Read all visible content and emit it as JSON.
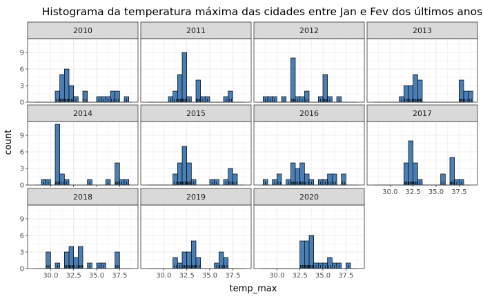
{
  "chart_data": {
    "type": "bar",
    "subtype": "faceted-histogram",
    "title": "Histograma da temperatura máxima das cidades entre Jan e Fev dos últimos anos",
    "xlabel": "temp_max",
    "ylabel": "count",
    "xlim": [
      27.5,
      39.5
    ],
    "ylim": [
      0,
      11.5
    ],
    "xticks": [
      30,
      32.5,
      35,
      37.5
    ],
    "xtick_labels": [
      "30.0",
      "32.5",
      "35.0",
      "37.5"
    ],
    "yticks": [
      0,
      3,
      6,
      9
    ],
    "ytick_labels": [
      "0",
      "3",
      "6",
      "9"
    ],
    "bin_width": 0.5,
    "grid": true,
    "rug": true,
    "colors": {
      "bar_fill": "#4a7fb5",
      "bar_stroke": "#000000",
      "strip_bg": "#d9d9d9",
      "panel_border": "#333333",
      "grid": "#ebebeb"
    },
    "facets": [
      {
        "year": "2010",
        "bins": [
          [
            30.5,
            2
          ],
          [
            31.0,
            5
          ],
          [
            31.5,
            6
          ],
          [
            32.0,
            3
          ],
          [
            32.5,
            1
          ],
          [
            33.5,
            2
          ],
          [
            35.0,
            1
          ],
          [
            35.5,
            1
          ],
          [
            36.0,
            1
          ],
          [
            36.5,
            2
          ],
          [
            37.0,
            2
          ],
          [
            38.0,
            1
          ]
        ]
      },
      {
        "year": "2011",
        "bins": [
          [
            30.5,
            1
          ],
          [
            31.0,
            2
          ],
          [
            31.5,
            5
          ],
          [
            32.0,
            9
          ],
          [
            32.5,
            1
          ],
          [
            33.5,
            4
          ],
          [
            34.0,
            1
          ],
          [
            34.5,
            1
          ],
          [
            36.5,
            1
          ],
          [
            37.0,
            2
          ]
        ]
      },
      {
        "year": "2012",
        "bins": [
          [
            28.5,
            1
          ],
          [
            29.0,
            1
          ],
          [
            29.5,
            1
          ],
          [
            30.5,
            1
          ],
          [
            31.5,
            8
          ],
          [
            32.0,
            1
          ],
          [
            32.5,
            1
          ],
          [
            33.0,
            2
          ],
          [
            34.5,
            1
          ],
          [
            35.0,
            5
          ],
          [
            35.5,
            1
          ],
          [
            36.5,
            1
          ]
        ]
      },
      {
        "year": "2013",
        "bins": [
          [
            31.0,
            1
          ],
          [
            31.5,
            3
          ],
          [
            32.0,
            3
          ],
          [
            32.5,
            5
          ],
          [
            33.0,
            4
          ],
          [
            37.5,
            4
          ],
          [
            38.0,
            2
          ],
          [
            38.5,
            2
          ]
        ]
      },
      {
        "year": "2014",
        "bins": [
          [
            29.0,
            1
          ],
          [
            29.5,
            1
          ],
          [
            30.5,
            11
          ],
          [
            31.0,
            2
          ],
          [
            31.5,
            1
          ],
          [
            34.0,
            1
          ],
          [
            36.0,
            1
          ],
          [
            37.0,
            4
          ],
          [
            37.5,
            1
          ],
          [
            38.0,
            1
          ]
        ]
      },
      {
        "year": "2015",
        "bins": [
          [
            31.0,
            2
          ],
          [
            31.5,
            4
          ],
          [
            32.0,
            7
          ],
          [
            32.5,
            4
          ],
          [
            33.0,
            1
          ],
          [
            35.0,
            1
          ],
          [
            35.5,
            1
          ],
          [
            36.5,
            1
          ],
          [
            37.0,
            3
          ],
          [
            37.5,
            2
          ]
        ]
      },
      {
        "year": "2016",
        "bins": [
          [
            28.5,
            1
          ],
          [
            29.5,
            1
          ],
          [
            30.0,
            2
          ],
          [
            31.0,
            1
          ],
          [
            31.5,
            4
          ],
          [
            32.0,
            3
          ],
          [
            32.5,
            4
          ],
          [
            33.0,
            2
          ],
          [
            33.5,
            1
          ],
          [
            34.5,
            1
          ],
          [
            35.0,
            1
          ],
          [
            35.5,
            2
          ],
          [
            36.0,
            2
          ],
          [
            37.0,
            2
          ]
        ]
      },
      {
        "year": "2017",
        "bins": [
          [
            31.5,
            4
          ],
          [
            32.0,
            8
          ],
          [
            32.5,
            4
          ],
          [
            33.0,
            1
          ],
          [
            35.5,
            2
          ],
          [
            36.5,
            5
          ],
          [
            37.0,
            1
          ],
          [
            37.5,
            1
          ]
        ]
      },
      {
        "year": "2018",
        "bins": [
          [
            29.5,
            3
          ],
          [
            30.5,
            1
          ],
          [
            31.5,
            3
          ],
          [
            32.0,
            4
          ],
          [
            32.5,
            2
          ],
          [
            33.0,
            4
          ],
          [
            34.0,
            1
          ],
          [
            35.0,
            1
          ],
          [
            35.5,
            1
          ],
          [
            37.0,
            3
          ]
        ]
      },
      {
        "year": "2019",
        "bins": [
          [
            31.0,
            2
          ],
          [
            31.5,
            1
          ],
          [
            32.0,
            3
          ],
          [
            32.5,
            3
          ],
          [
            33.0,
            5
          ],
          [
            33.5,
            2
          ],
          [
            35.5,
            1
          ],
          [
            36.0,
            3
          ],
          [
            36.5,
            2
          ]
        ]
      },
      {
        "year": "2020",
        "bins": [
          [
            32.5,
            5
          ],
          [
            33.0,
            5
          ],
          [
            33.5,
            6
          ],
          [
            34.0,
            1
          ],
          [
            34.5,
            1
          ],
          [
            35.0,
            1
          ],
          [
            35.5,
            2
          ],
          [
            36.0,
            1
          ],
          [
            36.5,
            1
          ],
          [
            37.5,
            1
          ]
        ]
      }
    ]
  }
}
